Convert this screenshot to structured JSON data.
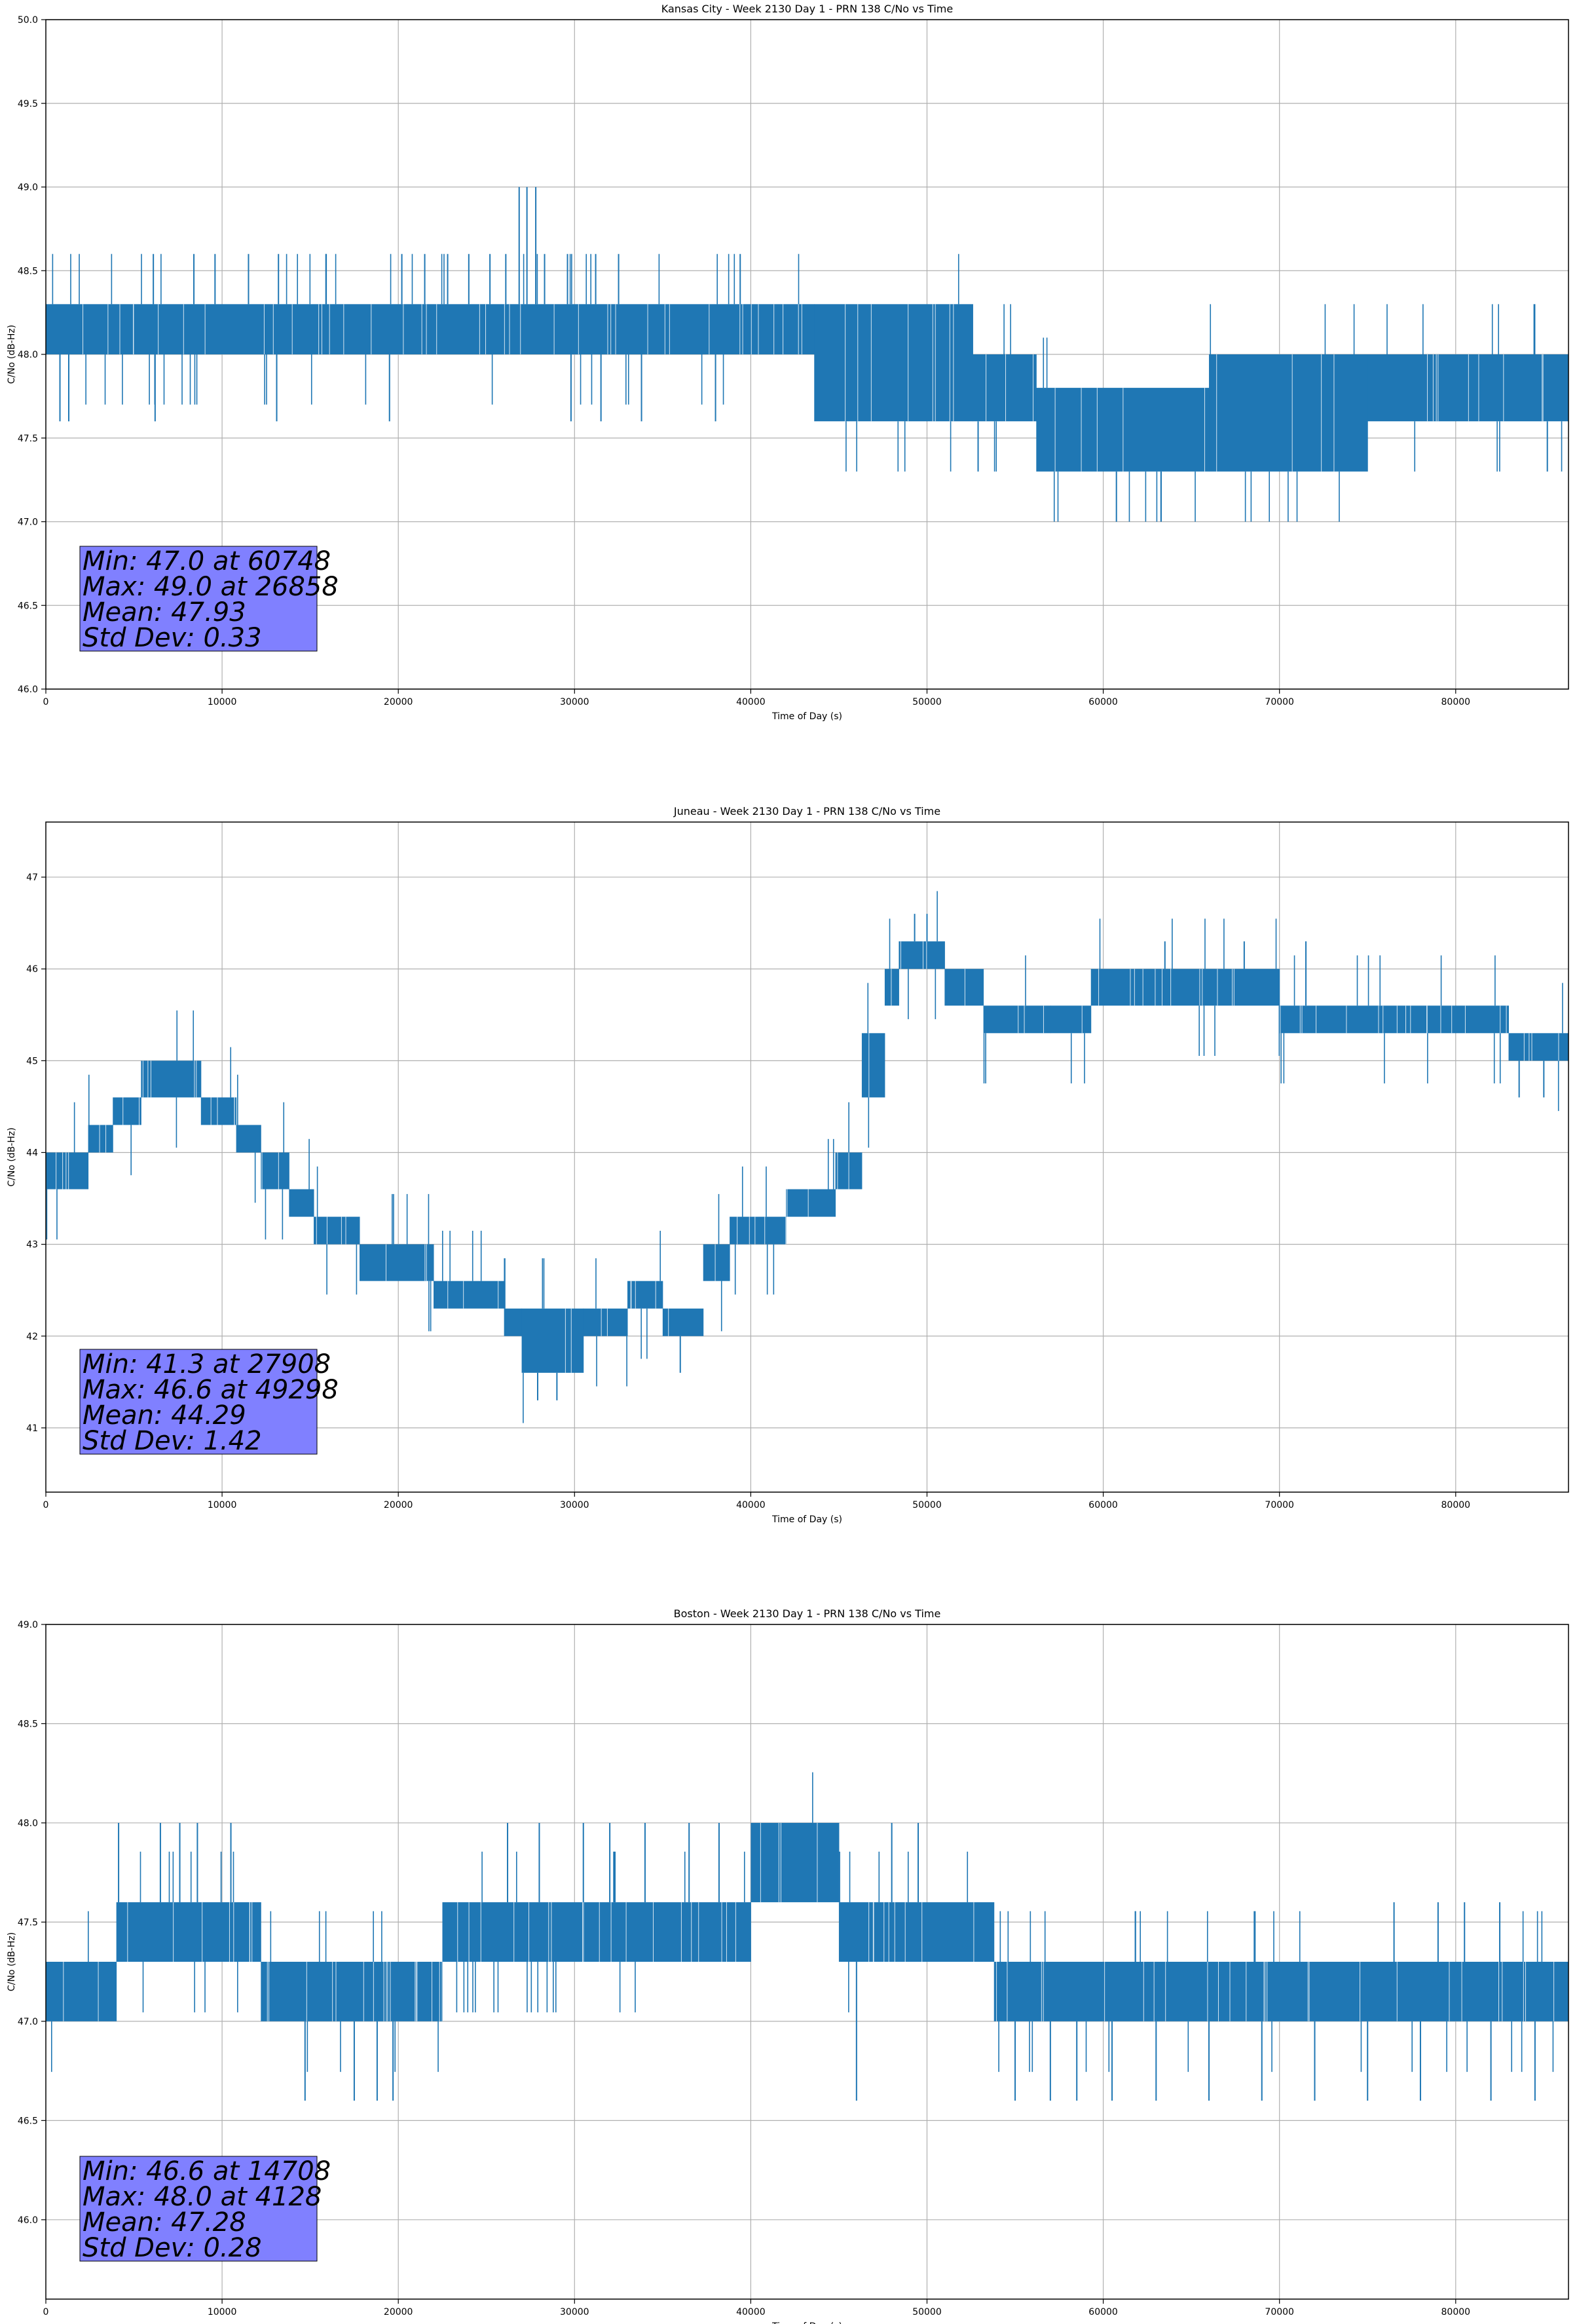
{
  "chart_data": [
    {
      "type": "line",
      "title": "Kansas City - Week 2130 Day 1 - PRN 138 C/No vs Time",
      "xlabel": "Time of Day (s)",
      "ylabel": "C/No (dB-Hz)",
      "xlim": [
        0,
        86400
      ],
      "ylim": [
        46.0,
        50.0
      ],
      "xticks": [
        0,
        10000,
        20000,
        30000,
        40000,
        50000,
        60000,
        70000,
        80000
      ],
      "yticks": [
        "46.0",
        "46.5",
        "47.0",
        "47.5",
        "48.0",
        "48.5",
        "49.0",
        "49.5",
        "50.0"
      ],
      "grid": true,
      "series_color": "#1f77b4",
      "band_segments": [
        {
          "x": [
            0,
            43600
          ],
          "lo": 48.0,
          "hi": 48.3
        },
        {
          "x": [
            43600,
            52600
          ],
          "lo": 47.6,
          "hi": 48.3
        },
        {
          "x": [
            52600,
            56200
          ],
          "lo": 47.6,
          "hi": 48.0
        },
        {
          "x": [
            56200,
            66000
          ],
          "lo": 47.3,
          "hi": 47.8
        },
        {
          "x": [
            66000,
            75000
          ],
          "lo": 47.3,
          "hi": 48.0
        },
        {
          "x": [
            75000,
            86400
          ],
          "lo": 47.6,
          "hi": 48.0
        }
      ],
      "spikes": [
        [
          6100,
          48.6
        ],
        [
          8400,
          48.6
        ],
        [
          9600,
          48.6
        ],
        [
          11500,
          48.6
        ],
        [
          13200,
          48.6
        ],
        [
          20200,
          48.6
        ],
        [
          21500,
          48.6
        ],
        [
          22800,
          48.6
        ],
        [
          24000,
          48.6
        ],
        [
          25200,
          48.6
        ],
        [
          26100,
          48.6
        ],
        [
          26858,
          49.0
        ],
        [
          27300,
          49.0
        ],
        [
          27800,
          49.0
        ],
        [
          28300,
          48.6
        ],
        [
          29600,
          48.6
        ],
        [
          31200,
          48.6
        ],
        [
          32500,
          48.6
        ],
        [
          39400,
          48.6
        ],
        [
          800,
          47.6
        ],
        [
          1300,
          47.6
        ],
        [
          6200,
          47.6
        ],
        [
          13100,
          47.6
        ],
        [
          19500,
          47.6
        ],
        [
          29800,
          47.6
        ],
        [
          31500,
          47.6
        ],
        [
          33800,
          47.6
        ],
        [
          38000,
          47.6
        ],
        [
          60748,
          47.0
        ],
        [
          52900,
          47.3
        ],
        [
          85200,
          47.3
        ]
      ],
      "stats": {
        "lines": [
          "Min: 47.0 at 60748",
          "Max: 49.0 at 26858",
          "Mean: 47.93",
          "Std Dev: 0.33"
        ],
        "box_color": "#8080ff"
      }
    },
    {
      "type": "line",
      "title": "Juneau - Week 2130 Day 1 - PRN 138 C/No vs Time",
      "xlabel": "Time of Day (s)",
      "ylabel": "C/No (dB-Hz)",
      "xlim": [
        0,
        86400
      ],
      "ylim": [
        40.3,
        47.6
      ],
      "xticks": [
        0,
        10000,
        20000,
        30000,
        40000,
        50000,
        60000,
        70000,
        80000
      ],
      "yticks": [
        "41",
        "42",
        "43",
        "44",
        "45",
        "46",
        "47"
      ],
      "grid": true,
      "series_color": "#1f77b4",
      "band_segments": [
        {
          "x": [
            0,
            2400
          ],
          "lo": 43.6,
          "hi": 44.0
        },
        {
          "x": [
            2400,
            3800
          ],
          "lo": 44.0,
          "hi": 44.3
        },
        {
          "x": [
            3800,
            5400
          ],
          "lo": 44.3,
          "hi": 44.6
        },
        {
          "x": [
            5400,
            8800
          ],
          "lo": 44.6,
          "hi": 45.0
        },
        {
          "x": [
            8800,
            10800
          ],
          "lo": 44.3,
          "hi": 44.6
        },
        {
          "x": [
            10800,
            12200
          ],
          "lo": 44.0,
          "hi": 44.3
        },
        {
          "x": [
            12200,
            13800
          ],
          "lo": 43.6,
          "hi": 44.0
        },
        {
          "x": [
            13800,
            15200
          ],
          "lo": 43.3,
          "hi": 43.6
        },
        {
          "x": [
            15200,
            17800
          ],
          "lo": 43.0,
          "hi": 43.3
        },
        {
          "x": [
            17800,
            22000
          ],
          "lo": 42.6,
          "hi": 43.0
        },
        {
          "x": [
            22000,
            26000
          ],
          "lo": 42.3,
          "hi": 42.6
        },
        {
          "x": [
            26000,
            27000
          ],
          "lo": 42.0,
          "hi": 42.3
        },
        {
          "x": [
            27000,
            30500
          ],
          "lo": 41.6,
          "hi": 42.3
        },
        {
          "x": [
            30500,
            33000
          ],
          "lo": 42.0,
          "hi": 42.3
        },
        {
          "x": [
            33000,
            35000
          ],
          "lo": 42.3,
          "hi": 42.6
        },
        {
          "x": [
            35000,
            37300
          ],
          "lo": 42.0,
          "hi": 42.3
        },
        {
          "x": [
            37300,
            38800
          ],
          "lo": 42.6,
          "hi": 43.0
        },
        {
          "x": [
            38800,
            42000
          ],
          "lo": 43.0,
          "hi": 43.3
        },
        {
          "x": [
            42000,
            44800
          ],
          "lo": 43.3,
          "hi": 43.6
        },
        {
          "x": [
            44800,
            46300
          ],
          "lo": 43.6,
          "hi": 44.0
        },
        {
          "x": [
            46300,
            47600
          ],
          "lo": 44.6,
          "hi": 45.3
        },
        {
          "x": [
            47600,
            48400
          ],
          "lo": 45.6,
          "hi": 46.0
        },
        {
          "x": [
            48400,
            51000
          ],
          "lo": 46.0,
          "hi": 46.3
        },
        {
          "x": [
            51000,
            53200
          ],
          "lo": 45.6,
          "hi": 46.0
        },
        {
          "x": [
            53200,
            57000
          ],
          "lo": 45.3,
          "hi": 45.6
        },
        {
          "x": [
            57000,
            59300
          ],
          "lo": 45.3,
          "hi": 45.6
        },
        {
          "x": [
            59300,
            70000
          ],
          "lo": 45.6,
          "hi": 46.0
        },
        {
          "x": [
            70000,
            78500
          ],
          "lo": 45.3,
          "hi": 45.6
        },
        {
          "x": [
            78500,
            83000
          ],
          "lo": 45.3,
          "hi": 45.6
        },
        {
          "x": [
            83000,
            86400
          ],
          "lo": 45.0,
          "hi": 45.3
        }
      ],
      "spikes": [
        [
          49298,
          46.6
        ],
        [
          50000,
          46.6
        ],
        [
          63500,
          46.3
        ],
        [
          68000,
          46.3
        ],
        [
          71500,
          46.3
        ],
        [
          27908,
          41.3
        ],
        [
          29000,
          41.3
        ],
        [
          28500,
          41.6
        ],
        [
          36000,
          41.6
        ],
        [
          85000,
          44.6
        ],
        [
          83600,
          44.6
        ]
      ],
      "stats": {
        "lines": [
          "Min: 41.3 at 27908",
          "Max: 46.6 at 49298",
          "Mean: 44.29",
          "Std Dev: 1.42"
        ],
        "box_color": "#8080ff"
      }
    },
    {
      "type": "line",
      "title": "Boston - Week 2130 Day 1 - PRN 138 C/No vs Time",
      "xlabel": "Time of Day (s)",
      "ylabel": "C/No (dB-Hz)",
      "xlim": [
        0,
        86400
      ],
      "ylim": [
        45.6,
        49.0
      ],
      "xticks": [
        0,
        10000,
        20000,
        30000,
        40000,
        50000,
        60000,
        70000,
        80000
      ],
      "yticks": [
        "46.0",
        "46.5",
        "47.0",
        "47.5",
        "48.0",
        "48.5",
        "49.0"
      ],
      "grid": true,
      "series_color": "#1f77b4",
      "band_segments": [
        {
          "x": [
            0,
            4000
          ],
          "lo": 47.0,
          "hi": 47.3
        },
        {
          "x": [
            4000,
            12200
          ],
          "lo": 47.3,
          "hi": 47.6
        },
        {
          "x": [
            12200,
            22500
          ],
          "lo": 47.0,
          "hi": 47.3
        },
        {
          "x": [
            22500,
            40000
          ],
          "lo": 47.3,
          "hi": 47.6
        },
        {
          "x": [
            40000,
            45000
          ],
          "lo": 47.6,
          "hi": 48.0
        },
        {
          "x": [
            45000,
            53800
          ],
          "lo": 47.3,
          "hi": 47.6
        },
        {
          "x": [
            53800,
            86400
          ],
          "lo": 47.0,
          "hi": 47.3
        }
      ],
      "spikes": [
        [
          4128,
          48.0
        ],
        [
          6500,
          48.0
        ],
        [
          7600,
          48.0
        ],
        [
          8600,
          48.0
        ],
        [
          10500,
          48.0
        ],
        [
          26200,
          48.0
        ],
        [
          28000,
          48.0
        ],
        [
          30500,
          48.0
        ],
        [
          32000,
          48.0
        ],
        [
          34000,
          48.0
        ],
        [
          36500,
          48.0
        ],
        [
          38200,
          48.0
        ],
        [
          48000,
          48.0
        ],
        [
          49500,
          48.0
        ],
        [
          14708,
          46.6
        ],
        [
          17500,
          46.6
        ],
        [
          18800,
          46.6
        ],
        [
          19700,
          46.6
        ],
        [
          46000,
          46.6
        ],
        [
          55000,
          46.6
        ],
        [
          57000,
          46.6
        ],
        [
          58500,
          46.6
        ],
        [
          60500,
          46.6
        ],
        [
          63000,
          46.6
        ],
        [
          66000,
          46.6
        ],
        [
          69000,
          46.6
        ],
        [
          72000,
          46.6
        ],
        [
          75000,
          46.6
        ],
        [
          78000,
          46.6
        ],
        [
          82000,
          46.6
        ],
        [
          84500,
          46.6
        ],
        [
          76500,
          47.6
        ],
        [
          79000,
          47.6
        ],
        [
          80500,
          47.6
        ],
        [
          82500,
          47.6
        ]
      ],
      "stats": {
        "lines": [
          "Min: 46.6 at 14708",
          "Max: 48.0 at 4128",
          "Mean: 47.28",
          "Std Dev: 0.28"
        ],
        "box_color": "#8080ff"
      }
    }
  ]
}
